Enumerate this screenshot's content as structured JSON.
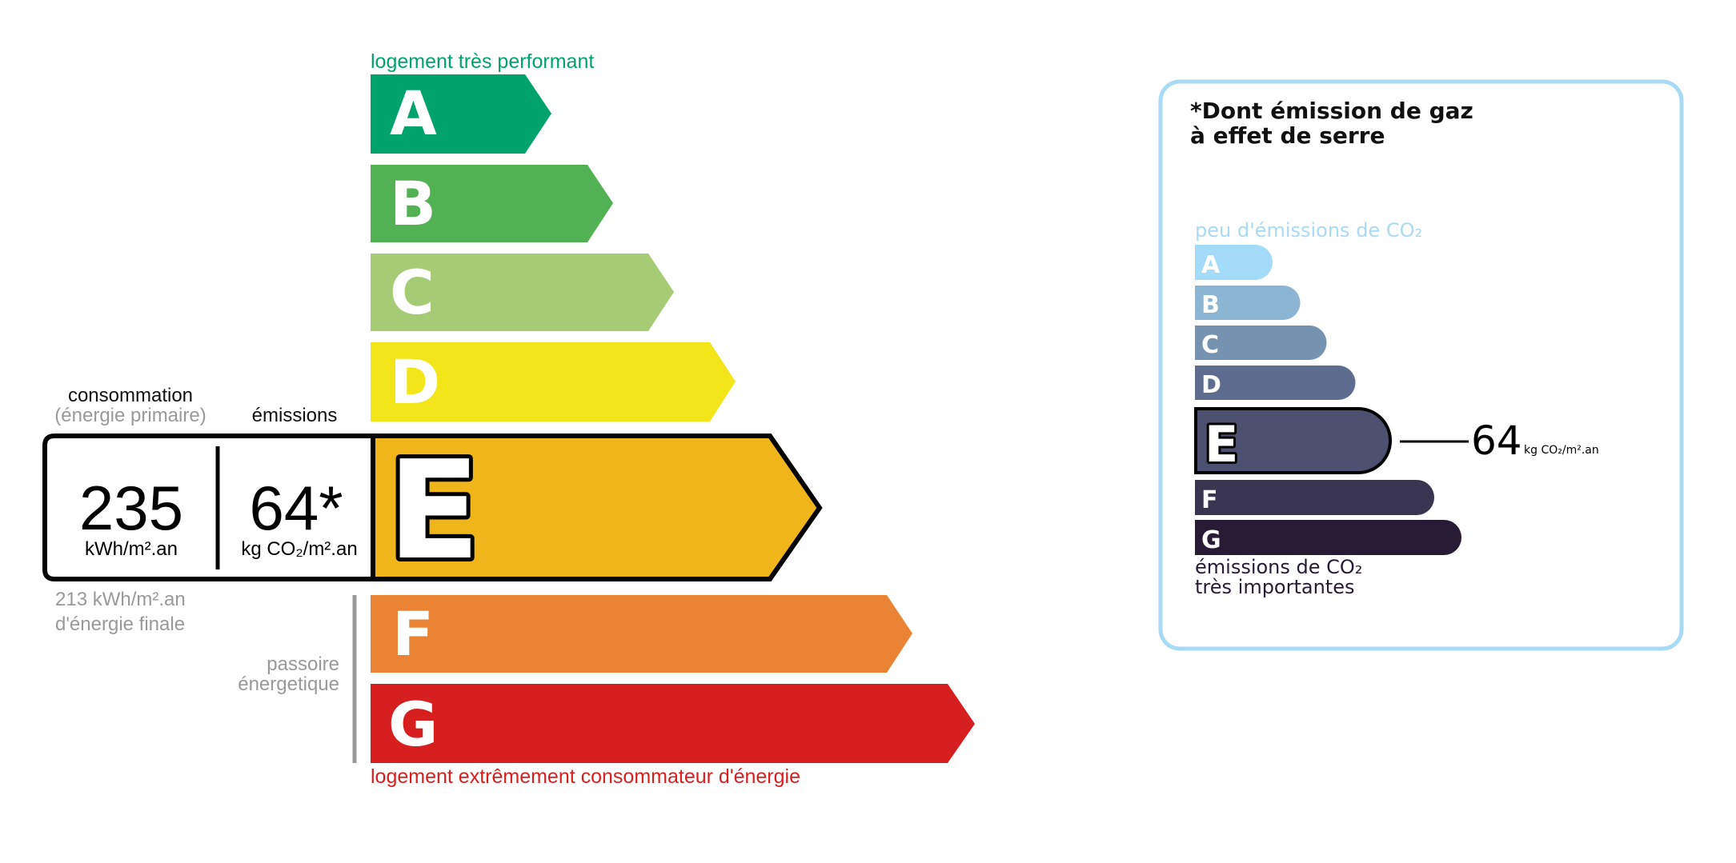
{
  "energy": {
    "top_label": "logement très performant",
    "bottom_label": "logement extrêmement consommateur d'énergie",
    "top_label_color": "#00a36c",
    "bottom_label_color": "#d71f20",
    "classes": [
      {
        "letter": "A",
        "color": "#00a36c"
      },
      {
        "letter": "B",
        "color": "#52b153"
      },
      {
        "letter": "C",
        "color": "#a5cc74"
      },
      {
        "letter": "D",
        "color": "#f2e51a"
      },
      {
        "letter": "E",
        "color": "#efb51a"
      },
      {
        "letter": "F",
        "color": "#eb8335"
      },
      {
        "letter": "G",
        "color": "#d71f20"
      }
    ],
    "current_class": "E",
    "consumption_label": "consommation",
    "consumption_sub": "(énergie primaire)",
    "emissions_label": "émissions",
    "consumption_value": "235",
    "consumption_unit": "kWh/m².an",
    "emissions_value": "64*",
    "emissions_unit": "kg CO₂/m².an",
    "final_energy_line1": "213 kWh/m².an",
    "final_energy_line2": "d'énergie finale",
    "passoire_line1": "passoire",
    "passoire_line2": "énergetique"
  },
  "ges": {
    "title_line1": "*Dont émission de gaz",
    "title_line2": "à effet de serre",
    "top_label": "peu d'émissions de CO₂",
    "bottom_line1": "émissions de CO₂",
    "bottom_line2": "très importantes",
    "border_color": "#a8daf5",
    "classes": [
      {
        "letter": "A",
        "color": "#a4dbf8"
      },
      {
        "letter": "B",
        "color": "#8cb4d3"
      },
      {
        "letter": "C",
        "color": "#7692b1"
      },
      {
        "letter": "D",
        "color": "#5e6d8f"
      },
      {
        "letter": "E",
        "color": "#4d5070"
      },
      {
        "letter": "F",
        "color": "#393551"
      },
      {
        "letter": "G",
        "color": "#281b35"
      }
    ],
    "current_class": "E",
    "value": "64",
    "unit": "kg CO₂/m².an"
  }
}
